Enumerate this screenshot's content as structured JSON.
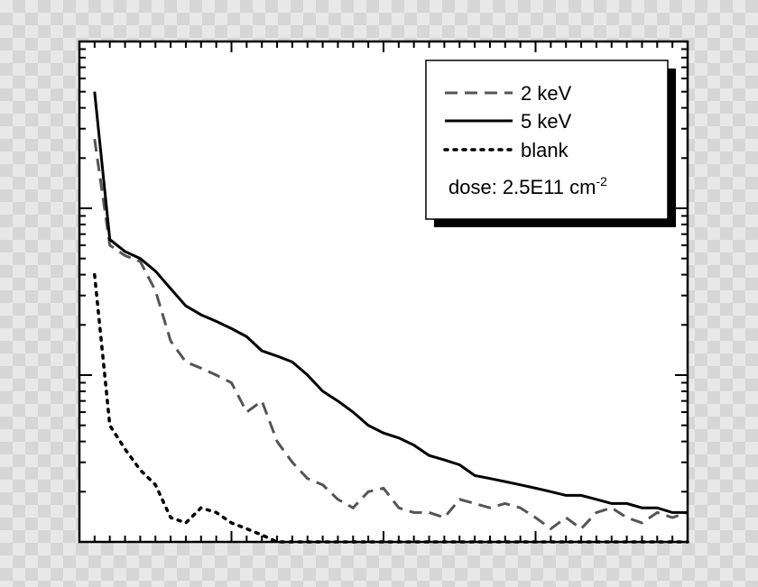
{
  "chart_data": {
    "type": "line",
    "xlim": [
      0,
      40
    ],
    "ylim_decades": [
      0,
      3
    ],
    "yscale": "log",
    "grid": false,
    "legend_placement": "top-right",
    "x_major_every": 10,
    "x_minor_every": 1,
    "series": [
      {
        "name": "2 keV",
        "style": "dashed",
        "color": "#555555",
        "x": [
          1,
          2,
          3,
          4,
          5,
          6,
          7,
          8,
          9,
          10,
          11,
          12,
          13,
          14,
          15,
          16,
          17,
          18,
          19,
          20,
          21,
          22,
          23,
          24,
          25,
          26,
          27,
          28,
          29,
          30,
          31,
          32,
          33,
          34,
          35,
          36,
          37,
          38,
          39,
          40
        ],
        "y": [
          260,
          60,
          52,
          48,
          32,
          16,
          12,
          11,
          10,
          9,
          6,
          7,
          4,
          3,
          2.4,
          2.2,
          1.8,
          1.6,
          2.0,
          2.1,
          1.6,
          1.5,
          1.5,
          1.4,
          1.8,
          1.7,
          1.6,
          1.7,
          1.6,
          1.4,
          1.2,
          1.4,
          1.2,
          1.5,
          1.6,
          1.4,
          1.3,
          1.5,
          1.4,
          1.5
        ]
      },
      {
        "name": "5 keV",
        "style": "solid",
        "color": "#000000",
        "x": [
          1,
          2,
          3,
          4,
          5,
          6,
          7,
          8,
          9,
          10,
          11,
          12,
          13,
          14,
          15,
          16,
          17,
          18,
          19,
          20,
          21,
          22,
          23,
          24,
          25,
          26,
          27,
          28,
          29,
          30,
          31,
          32,
          33,
          34,
          35,
          36,
          37,
          38,
          39,
          40
        ],
        "y": [
          500,
          65,
          55,
          50,
          42,
          33,
          26,
          23,
          21,
          19,
          17,
          14,
          13,
          12,
          10,
          8,
          7,
          6,
          5,
          4.5,
          4.2,
          3.8,
          3.3,
          3.1,
          2.9,
          2.5,
          2.4,
          2.3,
          2.2,
          2.1,
          2.0,
          1.9,
          1.9,
          1.8,
          1.7,
          1.7,
          1.6,
          1.6,
          1.5,
          1.5
        ]
      },
      {
        "name": "blank",
        "style": "dotted",
        "color": "#000000",
        "x": [
          1,
          2,
          3,
          4,
          5,
          6,
          7,
          8,
          9,
          10,
          11,
          12,
          13,
          14,
          15,
          16,
          17,
          18,
          19,
          20,
          21,
          22,
          23,
          24,
          25,
          26,
          27,
          28,
          29,
          30,
          31,
          32,
          33,
          34,
          35,
          36,
          37,
          38,
          39,
          40
        ],
        "y": [
          40,
          5,
          3.6,
          2.7,
          2.2,
          1.4,
          1.3,
          1.6,
          1.5,
          1.3,
          1.2,
          1.1,
          1.0,
          1.0,
          1.0,
          1.0,
          1.0,
          1.0,
          1.0,
          1.0,
          1.0,
          1.0,
          1.0,
          1.0,
          1.0,
          1.0,
          1.0,
          1.0,
          1.0,
          1.0,
          1.0,
          1.0,
          1.0,
          1.0,
          1.0,
          1.0,
          1.0,
          1.0,
          1.0,
          1.0
        ]
      }
    ],
    "annotation": {
      "text": "dose: 2.5E11 cm",
      "superscript": "-2"
    }
  }
}
